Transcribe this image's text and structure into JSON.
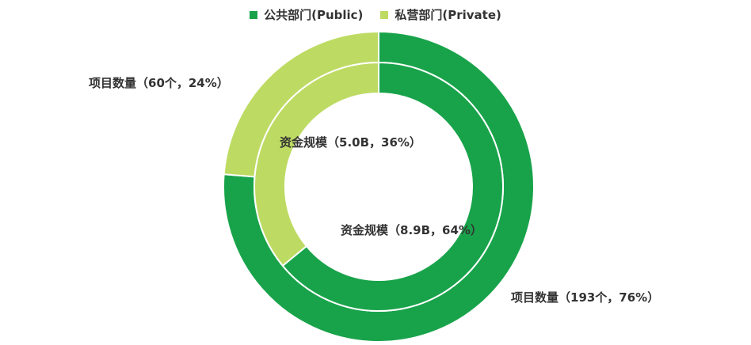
{
  "chart_data": {
    "type": "pie",
    "legend_position": "top",
    "series": [
      {
        "name": "公共部门(Public)",
        "color": "#18a34a"
      },
      {
        "name": "私营部门(Private)",
        "color": "#bddb63"
      }
    ],
    "rings": [
      {
        "ring": "outer",
        "values": [
          {
            "series": "公共部门(Public)",
            "value": 193,
            "percent": 76,
            "label": "项目数量（193个，76%）"
          },
          {
            "series": "私营部门(Private)",
            "value": 60,
            "percent": 24,
            "label": "项目数量（60个，24%）"
          }
        ]
      },
      {
        "ring": "inner",
        "values": [
          {
            "series": "公共部门(Public)",
            "value": 8.9,
            "percent": 64,
            "label": "资金规模（8.9B，64%）"
          },
          {
            "series": "私营部门(Private)",
            "value": 5.0,
            "percent": 36,
            "label": "资金规模（5.0B，36%）"
          }
        ]
      }
    ]
  }
}
